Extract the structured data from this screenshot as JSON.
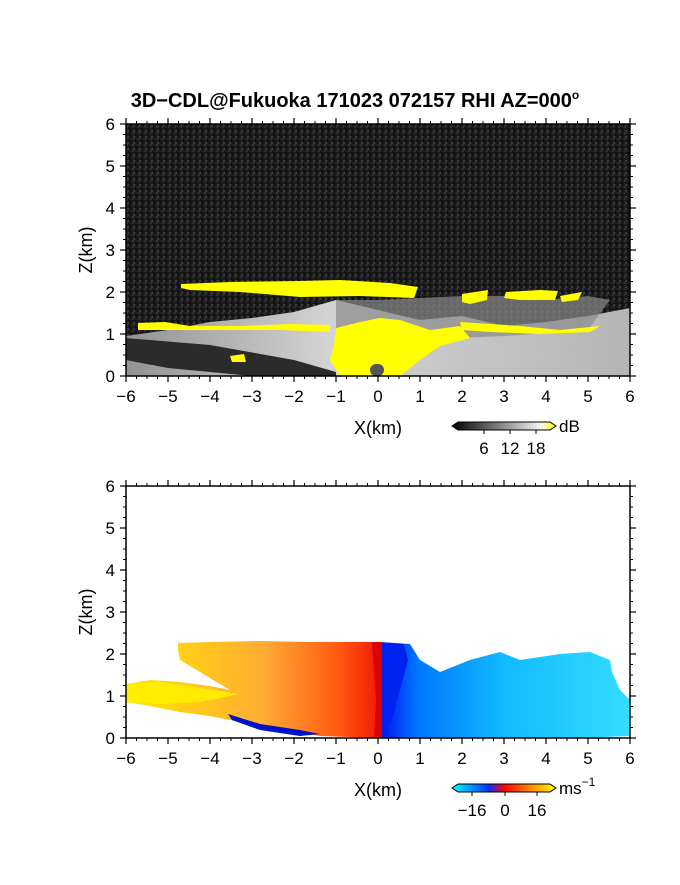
{
  "title": "3D−CDL@Fukuoka 171023 072157 RHI AZ=000",
  "title_degree": "o",
  "chart_data": [
    {
      "type": "heatmap",
      "quantity": "signal intensity",
      "xlabel": "X(km)",
      "ylabel": "Z(km)",
      "xlim": [
        -6,
        6
      ],
      "ylim": [
        0,
        6
      ],
      "xticks": [
        "−6",
        "−5",
        "−4",
        "−3",
        "−2",
        "−1",
        "0",
        "1",
        "2",
        "3",
        "4",
        "5",
        "6"
      ],
      "yticks": [
        "0",
        "1",
        "2",
        "3",
        "4",
        "5",
        "6"
      ],
      "grid": false,
      "colormap": [
        "#000000",
        "#ffffff",
        "#ffff00"
      ],
      "colorbar": {
        "unit": "dB",
        "ticks": [
          "6",
          "12",
          "18"
        ],
        "position": "below-right"
      },
      "features": [
        {
          "kind": "cloud_layer",
          "x": [
            -4.8,
            1.0
          ],
          "z": [
            2.05,
            2.3
          ],
          "level": "high"
        },
        {
          "kind": "cloud_layer",
          "x": [
            1.0,
            1.9
          ],
          "z": [
            1.9,
            2.15
          ],
          "level": "high"
        },
        {
          "kind": "cloud_patch",
          "x": [
            2.0,
            2.6
          ],
          "z": [
            1.8,
            2.1
          ],
          "level": "high"
        },
        {
          "kind": "cloud_patch",
          "x": [
            3.0,
            4.2
          ],
          "z": [
            1.85,
            2.05
          ],
          "level": "high"
        },
        {
          "kind": "cloud_layer",
          "x": [
            -6.0,
            4.0
          ],
          "z": [
            1.0,
            1.3
          ],
          "level": "high"
        },
        {
          "kind": "near_field",
          "x": [
            -1.2,
            1.1
          ],
          "z": [
            0.0,
            1.3
          ],
          "level": "high"
        }
      ]
    },
    {
      "type": "heatmap",
      "quantity": "doppler velocity",
      "xlabel": "X(km)",
      "ylabel": "Z(km)",
      "xlim": [
        -6,
        6
      ],
      "ylim": [
        0,
        6
      ],
      "xticks": [
        "−6",
        "−5",
        "−4",
        "−3",
        "−2",
        "−1",
        "0",
        "1",
        "2",
        "3",
        "4",
        "5",
        "6"
      ],
      "yticks": [
        "0",
        "1",
        "2",
        "3",
        "4",
        "5",
        "6"
      ],
      "grid": false,
      "colormap": [
        "#00ffff",
        "#0000ff",
        "#ff0000",
        "#ffff00"
      ],
      "colorbar": {
        "unit": "ms",
        "unit_exponent": "−1",
        "ticks": [
          "−16",
          "0",
          "16"
        ],
        "position": "below-right"
      },
      "features": [
        {
          "kind": "region",
          "x": [
            -4.8,
            0.0
          ],
          "z": [
            0.0,
            2.3
          ],
          "velocity_range": [
            2,
            16
          ],
          "note": "toward +X positive, higher near x=0"
        },
        {
          "kind": "region",
          "x": [
            -6.0,
            -3.0
          ],
          "z": [
            0.9,
            1.3
          ],
          "velocity_range": [
            14,
            16
          ]
        },
        {
          "kind": "region",
          "x": [
            0.0,
            6.0
          ],
          "z": [
            0.0,
            2.3
          ],
          "velocity_range": [
            -16,
            -4
          ],
          "note": "negative, strongest near x=0"
        }
      ]
    }
  ]
}
